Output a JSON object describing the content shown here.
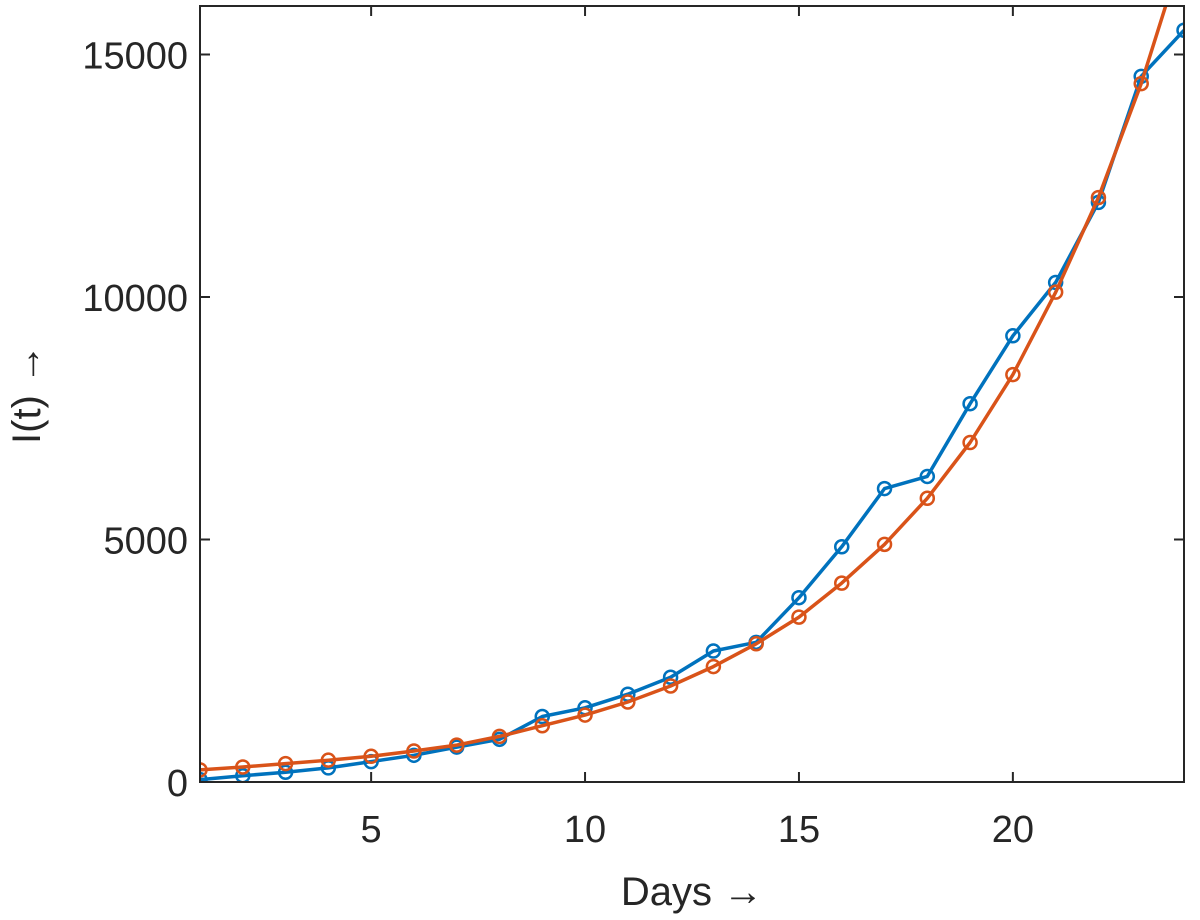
{
  "chart_data": {
    "type": "line",
    "xlabel": "Days →",
    "ylabel": "I(t) →",
    "xlim": [
      1,
      24
    ],
    "ylim": [
      0,
      16000
    ],
    "xticks": [
      5,
      10,
      15,
      20
    ],
    "yticks": [
      0,
      5000,
      10000,
      15000
    ],
    "xtick_labels": [
      "5",
      "10",
      "15",
      "20"
    ],
    "ytick_labels": [
      "0",
      "5000",
      "10000",
      "15000"
    ],
    "grid": false,
    "legend": "none",
    "x": [
      1,
      2,
      3,
      4,
      5,
      6,
      7,
      8,
      9,
      10,
      11,
      12,
      13,
      14,
      15,
      16,
      17,
      18,
      19,
      20,
      21,
      22,
      23,
      24
    ],
    "series": [
      {
        "color": "#0072BD",
        "marker": "circle",
        "values": [
          50,
          130,
          200,
          290,
          420,
          550,
          720,
          880,
          1350,
          1530,
          1810,
          2160,
          2700,
          2880,
          3800,
          4850,
          6050,
          6300,
          7800,
          9200,
          10300,
          11950,
          14550,
          15500
        ]
      },
      {
        "color": "#D95319",
        "marker": "circle",
        "values": [
          250,
          310,
          380,
          450,
          530,
          640,
          760,
          940,
          1160,
          1380,
          1650,
          1980,
          2380,
          2850,
          3400,
          4100,
          4900,
          5850,
          7000,
          8400,
          10100,
          12050,
          14400,
          17200
        ]
      }
    ]
  }
}
